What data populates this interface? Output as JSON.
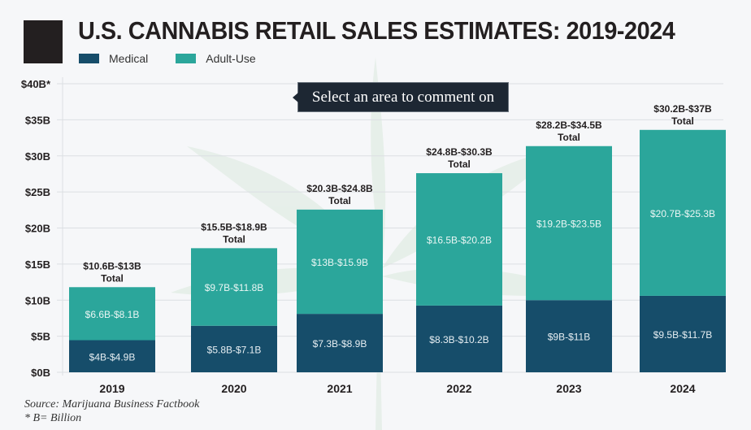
{
  "header": {
    "title": "U.S. CANNABIS RETAIL SALES ESTIMATES: 2019-2024"
  },
  "tooltip": {
    "text": "Select an area to comment on"
  },
  "footer": {
    "source": "Source: Marijuana Business Factbook",
    "note": "* B= Billion"
  },
  "colors": {
    "medical": "#164d6a",
    "adult_use": "#2ba69b",
    "text": "#231f20"
  },
  "chart_data": {
    "type": "bar",
    "stacked": true,
    "title": "U.S. CANNABIS RETAIL SALES ESTIMATES: 2019-2024",
    "xlabel": "",
    "ylabel": "",
    "ylim": [
      0,
      40
    ],
    "yticks": [
      0,
      5,
      10,
      15,
      20,
      25,
      30,
      35,
      40
    ],
    "ytick_labels": [
      "$0B",
      "$5B",
      "$10B",
      "$15B",
      "$20B",
      "$25B",
      "$30B",
      "$35B",
      "$40B*"
    ],
    "grid": true,
    "legend_position": "top-left",
    "categories": [
      "2019",
      "2020",
      "2021",
      "2022",
      "2023",
      "2024"
    ],
    "series": [
      {
        "name": "Medical",
        "values": [
          4.45,
          6.45,
          8.1,
          9.25,
          10.0,
          10.6
        ],
        "labels": [
          "$4B-$4.9B",
          "$5.8B-$7.1B",
          "$7.3B-$8.9B",
          "$8.3B-$10.2B",
          "$9B-$11B",
          "$9.5B-$11.7B"
        ]
      },
      {
        "name": "Adult-Use",
        "values": [
          7.35,
          10.75,
          14.45,
          18.35,
          21.35,
          23.0
        ],
        "labels": [
          "$6.6B-$8.1B",
          "$9.7B-$11.8B",
          "$13B-$15.9B",
          "$16.5B-$20.2B",
          "$19.2B-$23.5B",
          "$20.7B-$25.3B"
        ]
      }
    ],
    "totals": {
      "values": [
        11.8,
        17.2,
        22.55,
        27.55,
        31.35,
        33.6
      ],
      "labels": [
        "$10.6B-$13B",
        "$15.5B-$18.9B",
        "$20.3B-$24.8B",
        "$24.8B-$30.3B",
        "$28.2B-$34.5B",
        "$30.2B-$37B"
      ],
      "suffix": "Total"
    }
  }
}
